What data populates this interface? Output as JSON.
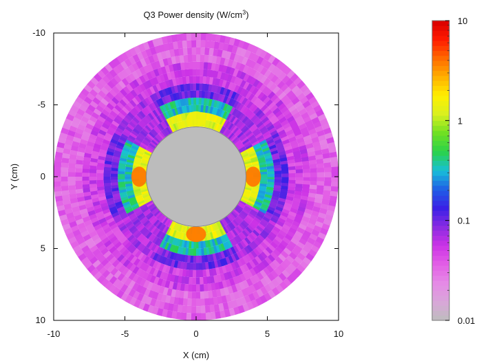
{
  "chart_data": {
    "type": "heatmap",
    "title": "Q3 Power density (W/cm",
    "title_superscript": "3",
    "title_close": ")",
    "xlabel": "X (cm)",
    "ylabel": "Y (cm)",
    "xlim": [
      -10,
      10
    ],
    "ylim": [
      -10,
      10
    ],
    "y_axis_inverted": true,
    "x_ticks": [
      "-10",
      "-5",
      "0",
      "5",
      "10"
    ],
    "x_tick_values": [
      -10,
      -5,
      0,
      5,
      10
    ],
    "y_ticks": [
      "-10",
      "-5",
      "0",
      "5",
      "10"
    ],
    "y_tick_values": [
      -10,
      -5,
      0,
      5,
      10
    ],
    "grid": false,
    "geometry": {
      "bore_radius": 3.5,
      "outer_radius": 10,
      "rings": [
        {
          "r_inner": 3.5,
          "r_outer": 4.5,
          "sector": "pole",
          "value": 1.3
        },
        {
          "r_inner": 4.5,
          "r_outer": 5.5,
          "sector": "pole",
          "value": 0.35
        },
        {
          "r_inner": 5.5,
          "r_outer": 6.5,
          "sector": "pole",
          "value": 0.1
        },
        {
          "r_inner": 3.5,
          "r_outer": 6.5,
          "sector": "gap",
          "value": 0.07
        },
        {
          "r_inner": 6.5,
          "r_outer": 8.0,
          "sector": "all",
          "value": 0.05
        },
        {
          "r_inner": 8.0,
          "r_outer": 10.0,
          "sector": "all",
          "value": 0.035
        }
      ],
      "pole_half_width_deg": 28,
      "pole_centers_deg": [
        0,
        90,
        180,
        270
      ],
      "hotspots": [
        {
          "x": 4,
          "y": 0,
          "value": 4
        },
        {
          "x": -4,
          "y": 0,
          "value": 4
        },
        {
          "x": 0,
          "y": 4,
          "value": 4
        },
        {
          "x": 0,
          "y": -4,
          "value": 1.5
        }
      ]
    },
    "colorbar": {
      "scale": "log",
      "min": 0.01,
      "max": 10,
      "tick_labels": [
        "10",
        "1",
        "0.1",
        "0.01"
      ],
      "tick_values": [
        10,
        1,
        0.1,
        0.01
      ],
      "colors": [
        "#bdbdbd",
        "#d9a6d9",
        "#e58ae6",
        "#e35fe6",
        "#cc33e6",
        "#8a2be2",
        "#3a20e6",
        "#1f5fe6",
        "#18c0d8",
        "#2ad24a",
        "#6fe023",
        "#d8f020",
        "#fff000",
        "#ffb000",
        "#ff6a00",
        "#ff1a00",
        "#d80000"
      ]
    }
  }
}
